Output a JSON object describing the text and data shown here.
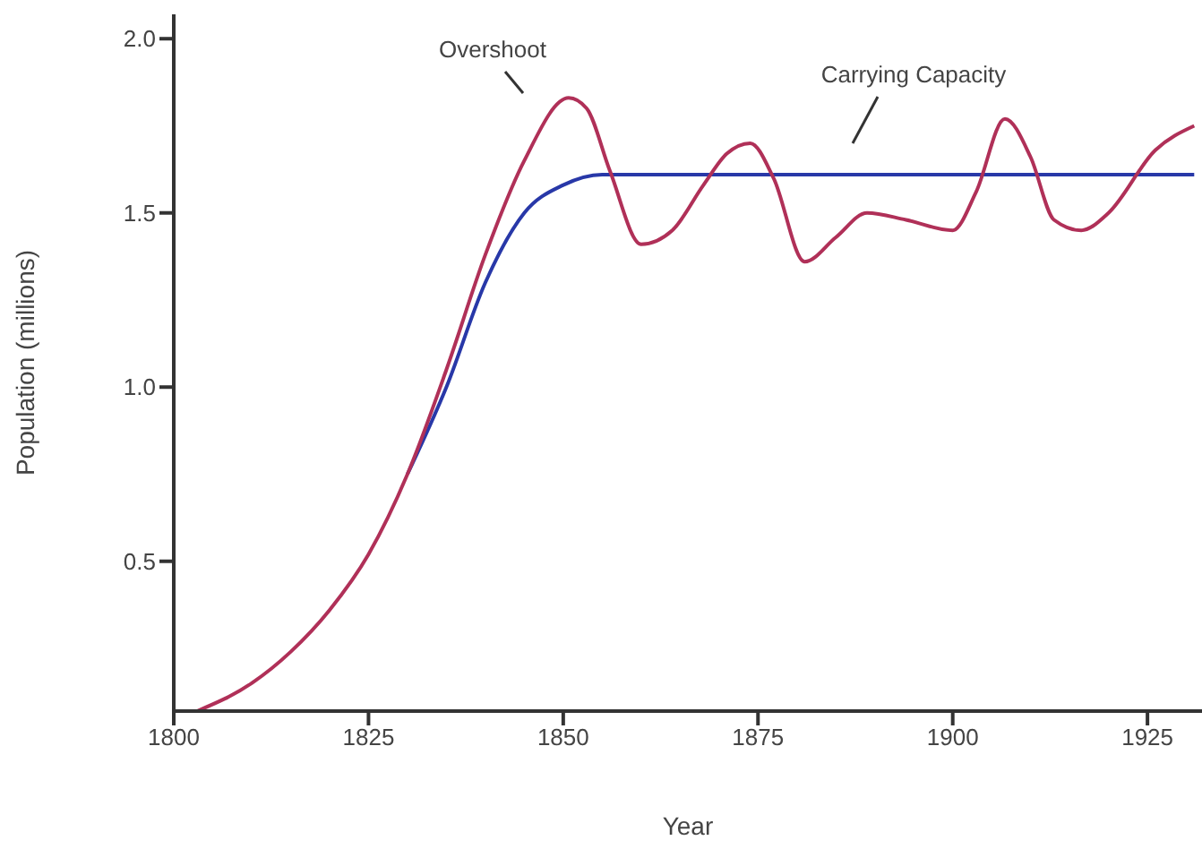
{
  "chart_data": {
    "type": "line",
    "xlabel": "Year",
    "ylabel": "Population (millions)",
    "xlim": [
      1800,
      1932
    ],
    "xticks": [
      1800,
      1825,
      1850,
      1875,
      1900,
      1925
    ],
    "ylim": [
      0.07,
      2.07
    ],
    "yticks": [
      0.5,
      {
        "value": 1,
        "label": "1.0"
      },
      1.5,
      {
        "value": 2,
        "label": "2.0"
      }
    ],
    "grid": false,
    "legend": false,
    "marker": "none",
    "line_style": "solid",
    "annotations": [
      "Overshoot",
      "Carrying Capacity"
    ],
    "series": [
      {
        "color": "#b03058",
        "x": [
          1803,
          1810,
          1815,
          1820,
          1825,
          1830,
          1835,
          1840,
          1845,
          1850.7,
          1853,
          1856,
          1860,
          1864,
          1868,
          1871,
          1874,
          1877,
          1881,
          1885,
          1889,
          1894,
          1900,
          1903,
          1906.7,
          1910,
          1913,
          1916.5,
          1920,
          1926,
          1931
        ],
        "values": [
          0.07,
          0.15,
          0.24,
          0.36,
          0.52,
          0.75,
          1.05,
          1.38,
          1.65,
          1.83,
          1.8,
          1.62,
          1.41,
          1.45,
          1.58,
          1.67,
          1.7,
          1.6,
          1.36,
          1.43,
          1.5,
          1.48,
          1.45,
          1.56,
          1.77,
          1.66,
          1.48,
          1.45,
          1.5,
          1.68,
          1.75
        ]
      },
      {
        "color": "#2838a8",
        "x": [
          1830,
          1835,
          1840,
          1845,
          1850,
          1855,
          1931
        ],
        "values": [
          0.75,
          1.0,
          1.3,
          1.5,
          1.58,
          1.61,
          1.61
        ]
      }
    ]
  }
}
